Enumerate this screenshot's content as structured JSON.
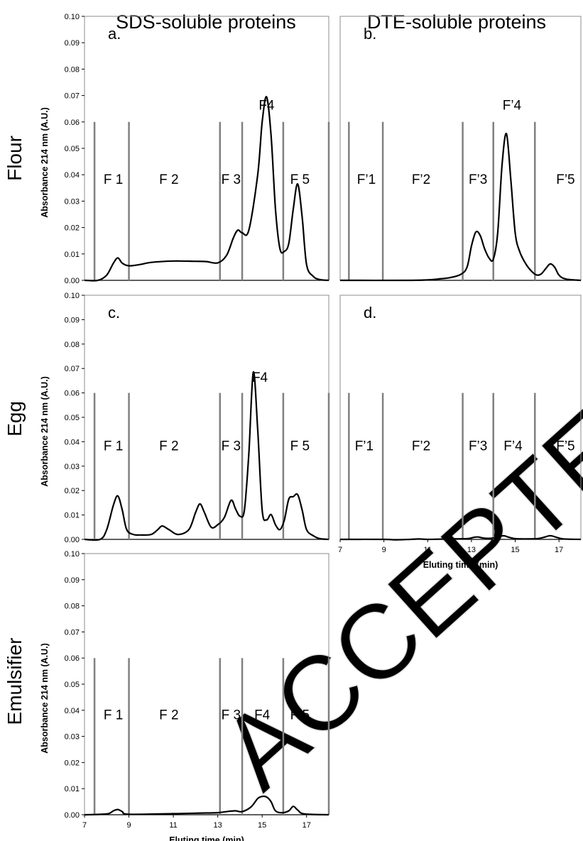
{
  "column_titles": [
    "SDS-soluble proteins",
    "DTE-soluble proteins"
  ],
  "row_titles": [
    "Flour",
    "Egg",
    "Emulsifier"
  ],
  "watermark": "ACCEPTED MA",
  "chart_data": [
    {
      "id": "a",
      "type": "line",
      "panel_label": "a.",
      "row": "Flour",
      "column": "SDS-soluble proteins",
      "ylabel": "Absorbance 214 nm  (A.U.)",
      "xlabel": "",
      "xlim": [
        7,
        18
      ],
      "ylim": [
        0,
        0.1
      ],
      "yticks": [
        "0.00",
        "0.01",
        "0.02",
        "0.03",
        "0.04",
        "0.05",
        "0.06",
        "0.07",
        "0.08",
        "0.09",
        "0.10"
      ],
      "xticks": [],
      "fractions": [
        {
          "label": "F 1",
          "x": 8.3
        },
        {
          "label": "F 2",
          "x": 10.8
        },
        {
          "label": "F 3",
          "x": 13.6
        },
        {
          "label": "F 5",
          "x": 16.7
        },
        {
          "label": "F4",
          "x": 15.2,
          "high": true
        }
      ],
      "dividers": [
        7.45,
        9.0,
        13.1,
        14.1,
        15.95,
        18.0
      ],
      "divider_top": 0.06,
      "series": [
        {
          "x": [
            7,
            7.6,
            8.0,
            8.3,
            8.5,
            8.7,
            9.0,
            9.5,
            10,
            11,
            12,
            12.5,
            13.0,
            13.4,
            13.7,
            13.9,
            14.1,
            14.4,
            14.8,
            15.0,
            15.2,
            15.4,
            15.6,
            15.8,
            16.0,
            16.2,
            16.4,
            16.6,
            16.8,
            17.0,
            17.3,
            17.6,
            18
          ],
          "y": [
            0,
            0,
            0.002,
            0.0065,
            0.0085,
            0.0065,
            0.0055,
            0.006,
            0.0068,
            0.0073,
            0.0072,
            0.0071,
            0.0066,
            0.0095,
            0.016,
            0.019,
            0.018,
            0.019,
            0.04,
            0.06,
            0.0695,
            0.055,
            0.027,
            0.012,
            0.011,
            0.014,
            0.027,
            0.0365,
            0.024,
            0.006,
            0.0015,
            0.0003,
            0
          ]
        }
      ]
    },
    {
      "id": "b",
      "type": "line",
      "panel_label": "b.",
      "row": "Flour",
      "column": "DTE-soluble proteins",
      "ylabel": "",
      "xlabel": "",
      "xlim": [
        7,
        18
      ],
      "ylim": [
        0,
        0.1
      ],
      "yticks": [],
      "xticks": [],
      "fractions": [
        {
          "label": "F’1",
          "x": 8.2
        },
        {
          "label": "F’2",
          "x": 10.7
        },
        {
          "label": "F’3",
          "x": 13.3
        },
        {
          "label": "F’5",
          "x": 17.3
        },
        {
          "label": "F’4",
          "x": 14.85,
          "high": true
        }
      ],
      "dividers": [
        7.4,
        8.95,
        12.6,
        14.0,
        15.9
      ],
      "divider_top": 0.06,
      "series": [
        {
          "x": [
            7,
            10,
            11,
            11.5,
            12,
            12.5,
            12.8,
            13.0,
            13.2,
            13.4,
            13.6,
            13.8,
            14.0,
            14.2,
            14.4,
            14.6,
            14.8,
            15.0,
            15.2,
            15.5,
            15.8,
            16.0,
            16.2,
            16.4,
            16.6,
            16.8,
            17.0,
            17.3,
            18
          ],
          "y": [
            0,
            0,
            0.0002,
            0.0005,
            0.001,
            0.0022,
            0.005,
            0.013,
            0.0183,
            0.017,
            0.012,
            0.0085,
            0.008,
            0.018,
            0.044,
            0.0555,
            0.038,
            0.018,
            0.011,
            0.006,
            0.003,
            0.002,
            0.0025,
            0.0045,
            0.0062,
            0.005,
            0.002,
            0.0005,
            0
          ]
        }
      ]
    },
    {
      "id": "c",
      "type": "line",
      "panel_label": "c.",
      "row": "Egg",
      "column": "SDS-soluble proteins",
      "ylabel": "Absorbance 214 nm  (A.U.)",
      "xlabel": "",
      "xlim": [
        7,
        18
      ],
      "ylim": [
        0,
        0.1
      ],
      "yticks": [
        "0.00",
        "0.01",
        "0.02",
        "0.03",
        "0.04",
        "0.05",
        "0.06",
        "0.07",
        "0.08",
        "0.09",
        "0.10"
      ],
      "xticks": [],
      "fractions": [
        {
          "label": "F 1",
          "x": 8.3
        },
        {
          "label": "F 2",
          "x": 10.8
        },
        {
          "label": "F 3",
          "x": 13.6
        },
        {
          "label": "F 5",
          "x": 16.7
        },
        {
          "label": "F4",
          "x": 14.9,
          "high": true
        }
      ],
      "dividers": [
        7.45,
        9.0,
        13.1,
        14.1,
        15.95,
        18.0
      ],
      "divider_top": 0.06,
      "series": [
        {
          "x": [
            7,
            7.7,
            8.0,
            8.3,
            8.5,
            8.7,
            8.9,
            9.2,
            9.5,
            10,
            10.3,
            10.5,
            10.8,
            11.2,
            11.7,
            12.0,
            12.2,
            12.4,
            12.7,
            13.0,
            13.3,
            13.6,
            13.8,
            14.0,
            14.2,
            14.4,
            14.6,
            14.8,
            15.0,
            15.2,
            15.4,
            15.6,
            15.8,
            16.0,
            16.2,
            16.4,
            16.6,
            16.8,
            17.0,
            17.3,
            17.6,
            18
          ],
          "y": [
            0,
            0,
            0.004,
            0.014,
            0.0178,
            0.012,
            0.004,
            0.002,
            0.0018,
            0.002,
            0.004,
            0.0055,
            0.004,
            0.002,
            0.004,
            0.011,
            0.0145,
            0.011,
            0.005,
            0.006,
            0.009,
            0.016,
            0.0125,
            0.0095,
            0.012,
            0.035,
            0.0685,
            0.045,
            0.012,
            0.008,
            0.0102,
            0.006,
            0.004,
            0.008,
            0.0165,
            0.0175,
            0.0183,
            0.012,
            0.004,
            0.0015,
            0.0003,
            0
          ]
        }
      ]
    },
    {
      "id": "d",
      "type": "line",
      "panel_label": "d.",
      "row": "Egg",
      "column": "DTE-soluble proteins",
      "ylabel": "",
      "xlabel": "Eluting time (min)",
      "xlim": [
        7,
        18
      ],
      "ylim": [
        0,
        0.1
      ],
      "yticks": [],
      "xticks": [
        "7",
        "9",
        "11",
        "13",
        "15",
        "17"
      ],
      "fractions": [
        {
          "label": "F’1",
          "x": 8.1
        },
        {
          "label": "F’2",
          "x": 10.7
        },
        {
          "label": "F’3",
          "x": 13.3
        },
        {
          "label": "F’4",
          "x": 14.9
        },
        {
          "label": "F’5",
          "x": 17.3
        }
      ],
      "dividers": [
        7.4,
        8.95,
        12.6,
        14.0,
        15.9
      ],
      "divider_top": 0.06,
      "series": [
        {
          "x": [
            7,
            9,
            9.5,
            10.2,
            10.6,
            11,
            12,
            12.8,
            13.1,
            13.3,
            13.5,
            13.8,
            14.2,
            14.45,
            14.7,
            15.0,
            15.5,
            16.0,
            16.3,
            16.6,
            16.9,
            17.2,
            18
          ],
          "y": [
            0,
            0,
            -0.0002,
            0,
            0.0002,
            0,
            0.0002,
            0.0003,
            0.0008,
            0.001,
            0.0006,
            0.0004,
            0.0008,
            0.0015,
            0.0009,
            0.0003,
            0.0002,
            0.0003,
            0.0008,
            0.0015,
            0.0008,
            0.0002,
            0
          ]
        }
      ]
    },
    {
      "id": "e",
      "type": "line",
      "panel_label": "",
      "row": "Emulsifier",
      "column": "SDS-soluble proteins",
      "ylabel": "Absorbance 214 nm  (A.U.)",
      "xlabel": "Eluting time (min)",
      "xlim": [
        7,
        18
      ],
      "ylim": [
        0,
        0.1
      ],
      "yticks": [
        "0.00",
        "0.01",
        "0.02",
        "0.03",
        "0.04",
        "0.05",
        "0.06",
        "0.07",
        "0.08",
        "0.09",
        "0.10"
      ],
      "xticks": [
        "7",
        "9",
        "11",
        "13",
        "15",
        "17"
      ],
      "fractions": [
        {
          "label": "F 1",
          "x": 8.3
        },
        {
          "label": "F 2",
          "x": 10.8
        },
        {
          "label": "F 3",
          "x": 13.6
        },
        {
          "label": "F4",
          "x": 15.0
        },
        {
          "label": "F 5",
          "x": 16.7
        }
      ],
      "dividers": [
        7.45,
        9.0,
        13.1,
        14.1,
        15.95,
        18.0
      ],
      "divider_top": 0.06,
      "series": [
        {
          "x": [
            7,
            8.0,
            8.3,
            8.5,
            8.7,
            9.0,
            11,
            12,
            13,
            13.5,
            13.8,
            14.1,
            14.5,
            14.8,
            15.0,
            15.2,
            15.4,
            15.6,
            15.9,
            16.2,
            16.4,
            16.6,
            16.9,
            18
          ],
          "y": [
            0,
            0.0003,
            0.0015,
            0.002,
            0.0012,
            0.0002,
            0.0004,
            0.0006,
            0.0008,
            0.0013,
            0.0015,
            0.0012,
            0.003,
            0.0062,
            0.007,
            0.0068,
            0.005,
            0.0015,
            0.0008,
            0.0015,
            0.0032,
            0.0018,
            0.0003,
            0
          ]
        }
      ]
    }
  ]
}
